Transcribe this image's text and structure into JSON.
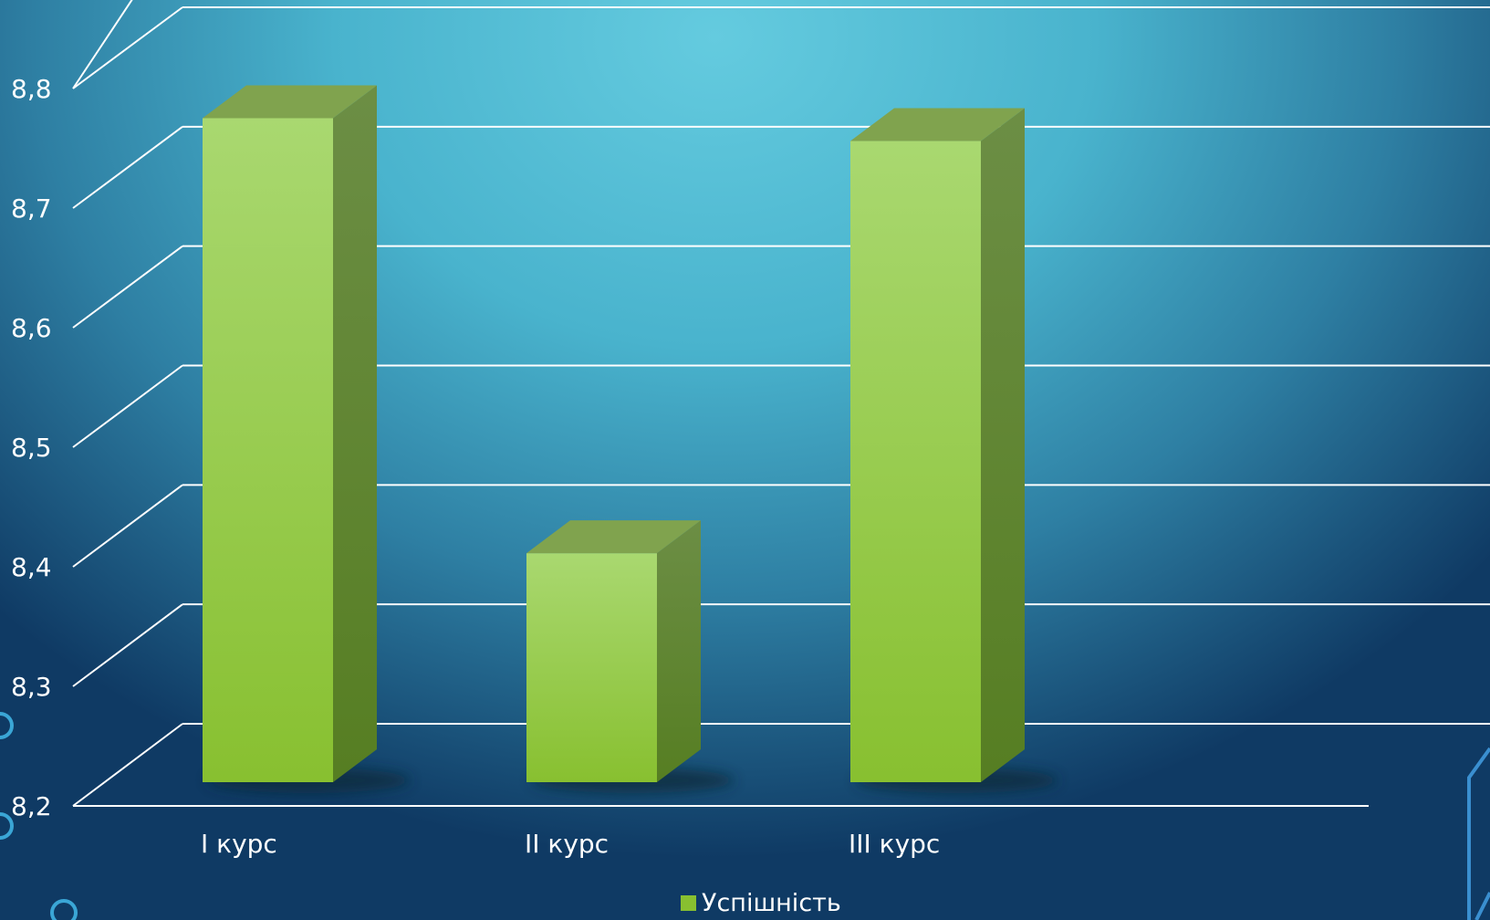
{
  "colors": {
    "bar_front_top": "#a9d870",
    "bar_front_bottom": "#88c030",
    "bar_top": "#80a34e",
    "bar_side_top": "#6c8e45",
    "bar_side_bottom": "#567e22",
    "grid": "#ffffff",
    "text": "#ffffff"
  },
  "chart_data": {
    "type": "bar",
    "style": "3d-column",
    "categories": [
      "I курс",
      "II курс",
      "III курс"
    ],
    "series": [
      {
        "name": "Успішність",
        "values": [
          8.78,
          8.4,
          8.76
        ]
      }
    ],
    "y_ticks": [
      "8,2",
      "8,3",
      "8,4",
      "8,5",
      "8,6",
      "8,7",
      "8,8"
    ],
    "ylim": [
      8.2,
      8.8
    ],
    "grid": true,
    "legend_position": "bottom"
  },
  "legend": {
    "label": "Успішність"
  },
  "decor": {
    "circle_icon": "circle-outline-icon",
    "corner_shape": "hexagon-outline-icon"
  }
}
